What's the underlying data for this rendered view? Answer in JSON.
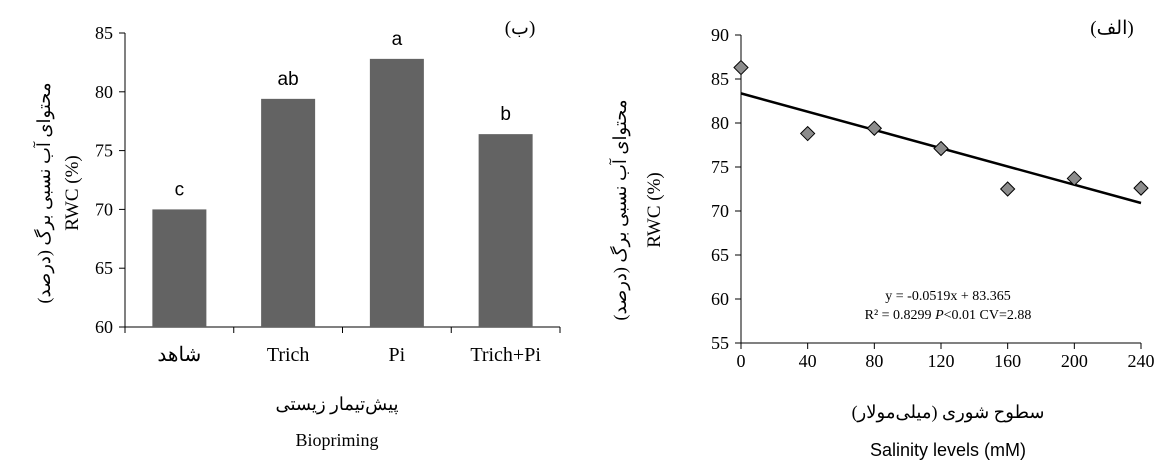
{
  "chart_data": [
    {
      "type": "bar",
      "panel_label": "(ب)",
      "categories": [
        "شاهد",
        "Trich",
        "Pi",
        "Trich+Pi"
      ],
      "values": [
        70.0,
        79.4,
        82.8,
        76.4
      ],
      "data_labels": [
        "c",
        "ab",
        "a",
        "b"
      ],
      "ylim": [
        60,
        85
      ],
      "yticks": [
        60,
        65,
        70,
        75,
        80,
        85
      ],
      "ylabel_fa": "محتوای آب نسبی برگ (درصد)",
      "ylabel_en": "RWC (%)",
      "xlabel_fa": "پیش‌تیمار زیستی",
      "xlabel_en": "Biopriming",
      "bar_color": "#636363"
    },
    {
      "type": "scatter",
      "panel_label": "(الف)",
      "x": [
        0,
        40,
        80,
        120,
        160,
        200,
        240
      ],
      "y": [
        86.3,
        78.8,
        79.4,
        77.1,
        72.5,
        73.7,
        72.6
      ],
      "trendline": {
        "slope": -0.0519,
        "intercept": 83.365
      },
      "equation": "y = -0.0519x + 83.365",
      "stats_prefix": "R² = 0.8299 ",
      "stats_p": "P",
      "stats_suffix": "<0.01 CV=2.88",
      "xlim": [
        0,
        240
      ],
      "xticks": [
        0,
        40,
        80,
        120,
        160,
        200,
        240
      ],
      "ylim": [
        55,
        90
      ],
      "yticks": [
        55,
        60,
        65,
        70,
        75,
        80,
        85,
        90
      ],
      "ylabel_fa": "محتوای آب نسبی برگ (درصد)",
      "ylabel_en": "RWC (%)",
      "xlabel_fa": "سطوح شوری (میلی‌مولار)",
      "xlabel_en": "Salinity levels (mM)",
      "marker_color": "#8c8c8c"
    }
  ]
}
